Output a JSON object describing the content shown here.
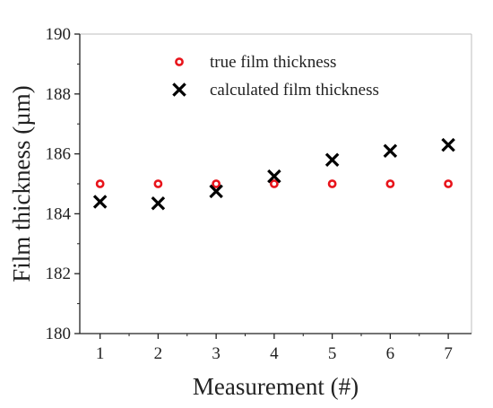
{
  "chart_data": {
    "type": "scatter",
    "title": "",
    "xlabel": "Measurement (#)",
    "ylabel": "Film thickness (µm)",
    "xlim": [
      0.65,
      7.4
    ],
    "ylim": [
      180,
      190
    ],
    "x_ticks": [
      "1",
      "2",
      "3",
      "4",
      "5",
      "6",
      "7"
    ],
    "y_ticks": [
      "180",
      "182",
      "184",
      "186",
      "188",
      "190"
    ],
    "grid": false,
    "legend_position": "top-center",
    "series": [
      {
        "name": "true film thickness",
        "marker": "open-circle",
        "color": "#e8141b",
        "x": [
          1,
          2,
          3,
          4,
          5,
          6,
          7
        ],
        "y": [
          185.0,
          185.0,
          185.0,
          185.0,
          185.0,
          185.0,
          185.0
        ]
      },
      {
        "name": "calculated film thickness",
        "marker": "cross",
        "color": "#000000",
        "x": [
          1,
          2,
          3,
          4,
          5,
          6,
          7
        ],
        "y": [
          184.4,
          184.35,
          184.75,
          185.25,
          185.8,
          186.1,
          186.3
        ]
      }
    ]
  }
}
